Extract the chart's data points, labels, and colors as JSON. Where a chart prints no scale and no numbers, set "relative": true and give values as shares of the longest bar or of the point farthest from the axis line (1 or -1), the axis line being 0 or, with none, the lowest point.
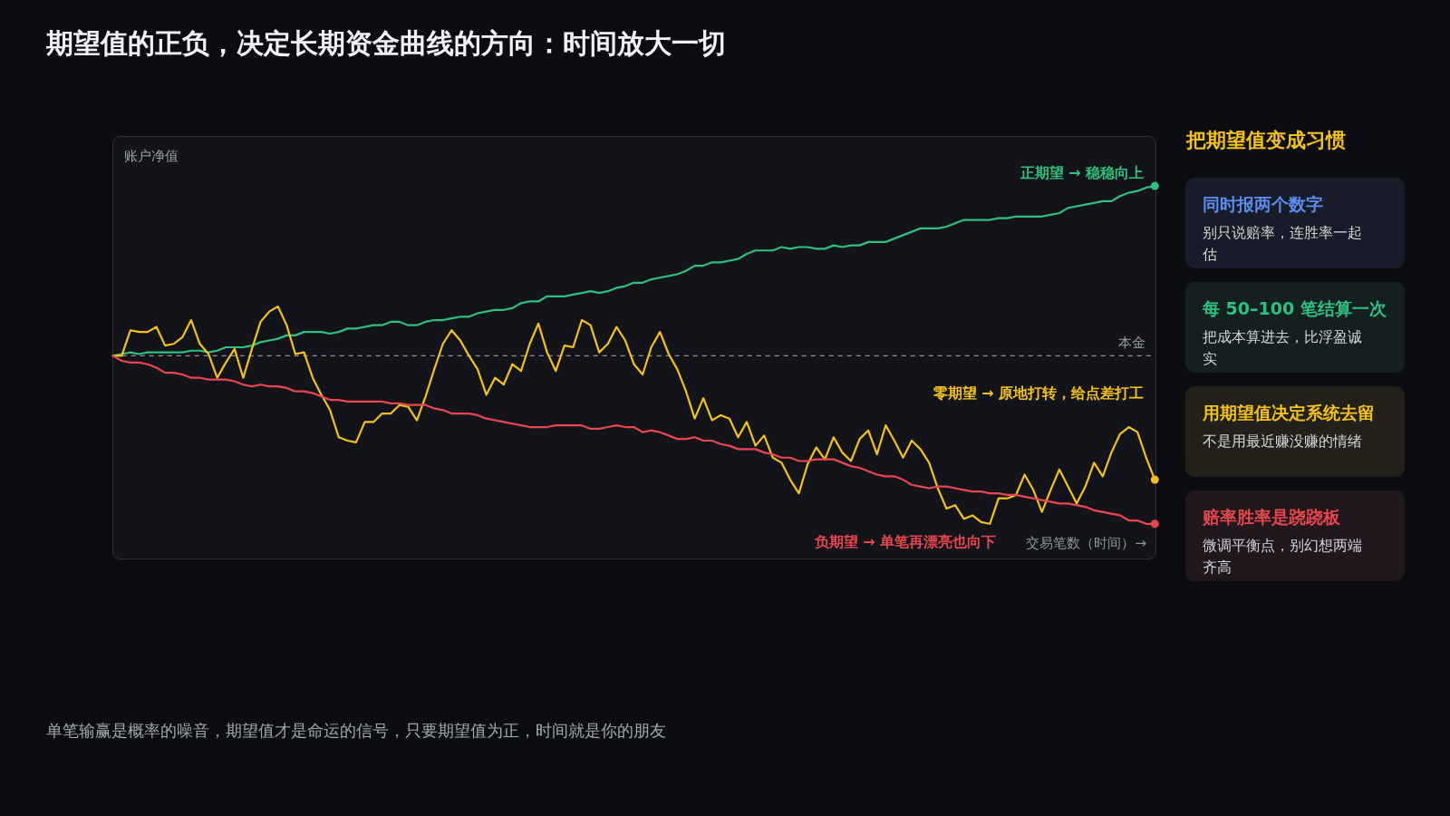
{
  "chart_data": [
    {
      "type": "line",
      "title": "期望值的正负，决定长期资金曲线的方向：时间放大一切",
      "xlabel": "交易笔数（时间）→",
      "ylabel": "账户净值",
      "annotations": [
        "单笔输赢是概率的噪音，期望值才是命运的信号，只要期望值为正，时间就是你的朋友"
      ],
      "relative": true,
      "categories": [
        null,
        null,
        null,
        null,
        null,
        null,
        null,
        null,
        null,
        null,
        null,
        null,
        null,
        null,
        null,
        null,
        null,
        null,
        null,
        null,
        null,
        null,
        null,
        null,
        null,
        null,
        null,
        null,
        null,
        null,
        null,
        null,
        null,
        null,
        null,
        null,
        null,
        null,
        null,
        null,
        null,
        null,
        null,
        null,
        null,
        null,
        null,
        null,
        null,
        null,
        null,
        null,
        null,
        null,
        null,
        null,
        null,
        null,
        null,
        null,
        null,
        null,
        null,
        null,
        null,
        null,
        null,
        null,
        null,
        null,
        null,
        null,
        null,
        null,
        null,
        null,
        null,
        null,
        null,
        null,
        null,
        null,
        null,
        null,
        null,
        null,
        null,
        null,
        null,
        null,
        null,
        null,
        null,
        null,
        null,
        null,
        null,
        null,
        null,
        null,
        null,
        null,
        null,
        null,
        null,
        null,
        null,
        null,
        null,
        null,
        null,
        null,
        null,
        null,
        null,
        null,
        null,
        null,
        null,
        null,
        null
      ],
      "series": [
        {
          "name": "正期望 → 稳稳向上",
          "color": "#2fc07f",
          "values": [
            0,
            0.01,
            0.02,
            0.01,
            0.02,
            0.02,
            0.02,
            0.02,
            0.02,
            0.03,
            0.03,
            0.02,
            0.03,
            0.05,
            0.05,
            0.05,
            0.06,
            0.08,
            0.09,
            0.1,
            0.12,
            0.12,
            0.14,
            0.14,
            0.14,
            0.13,
            0.14,
            0.16,
            0.16,
            0.17,
            0.18,
            0.18,
            0.2,
            0.2,
            0.18,
            0.18,
            0.2,
            0.21,
            0.21,
            0.22,
            0.23,
            0.23,
            0.25,
            0.26,
            0.27,
            0.27,
            0.28,
            0.31,
            0.32,
            0.32,
            0.35,
            0.35,
            0.35,
            0.36,
            0.37,
            0.38,
            0.37,
            0.38,
            0.4,
            0.41,
            0.43,
            0.43,
            0.45,
            0.46,
            0.47,
            0.48,
            0.5,
            0.53,
            0.53,
            0.55,
            0.55,
            0.56,
            0.57,
            0.6,
            0.62,
            0.62,
            0.62,
            0.64,
            0.63,
            0.64,
            0.64,
            0.63,
            0.63,
            0.65,
            0.64,
            0.65,
            0.65,
            0.67,
            0.67,
            0.67,
            0.69,
            0.71,
            0.73,
            0.75,
            0.75,
            0.75,
            0.76,
            0.78,
            0.8,
            0.8,
            0.8,
            0.8,
            0.81,
            0.81,
            0.82,
            0.82,
            0.82,
            0.82,
            0.83,
            0.84,
            0.87,
            0.88,
            0.89,
            0.9,
            0.91,
            0.91,
            0.94,
            0.96,
            0.97,
            0.99,
            1.0
          ]
        },
        {
          "name": "零期望 → 原地打转，给点差打工",
          "color": "#f4c21a",
          "values": [
            0,
            0.0,
            0.15,
            0.14,
            0.14,
            0.17,
            0.06,
            0.07,
            0.11,
            0.21,
            0.07,
            0.01,
            -0.13,
            -0.04,
            0.04,
            -0.13,
            0.04,
            0.2,
            0.26,
            0.29,
            0.18,
            0.01,
            0.02,
            -0.13,
            -0.23,
            -0.32,
            -0.48,
            -0.5,
            -0.51,
            -0.39,
            -0.39,
            -0.34,
            -0.34,
            -0.29,
            -0.3,
            -0.38,
            -0.24,
            -0.08,
            0.07,
            0.15,
            0.09,
            0.0,
            -0.08,
            -0.23,
            -0.13,
            -0.17,
            -0.05,
            -0.09,
            0.07,
            0.19,
            0.02,
            -0.09,
            0.06,
            0.05,
            0.21,
            0.18,
            0.02,
            0.07,
            0.17,
            0.09,
            -0.05,
            -0.11,
            0.05,
            0.14,
            0.01,
            -0.08,
            -0.21,
            -0.37,
            -0.25,
            -0.38,
            -0.35,
            -0.37,
            -0.48,
            -0.39,
            -0.53,
            -0.47,
            -0.6,
            -0.63,
            -0.73,
            -0.81,
            -0.64,
            -0.54,
            -0.61,
            -0.48,
            -0.57,
            -0.62,
            -0.49,
            -0.44,
            -0.58,
            -0.41,
            -0.5,
            -0.6,
            -0.5,
            -0.55,
            -0.63,
            -0.78,
            -0.9,
            -0.88,
            -0.96,
            -0.94,
            -0.98,
            -0.99,
            -0.84,
            -0.84,
            -0.82,
            -0.7,
            -0.79,
            -0.92,
            -0.79,
            -0.67,
            -0.77,
            -0.87,
            -0.77,
            -0.63,
            -0.71,
            -0.57,
            -0.46,
            -0.42,
            -0.45,
            -0.6,
            -0.73
          ]
        },
        {
          "name": "负期望 → 单笔再漂亮也向下",
          "color": "#e8474f",
          "values": [
            0,
            -0.03,
            -0.04,
            -0.04,
            -0.05,
            -0.07,
            -0.1,
            -0.1,
            -0.11,
            -0.13,
            -0.13,
            -0.14,
            -0.14,
            -0.14,
            -0.15,
            -0.17,
            -0.18,
            -0.17,
            -0.18,
            -0.18,
            -0.19,
            -0.21,
            -0.21,
            -0.22,
            -0.24,
            -0.26,
            -0.26,
            -0.27,
            -0.27,
            -0.27,
            -0.27,
            -0.27,
            -0.28,
            -0.28,
            -0.29,
            -0.29,
            -0.29,
            -0.31,
            -0.32,
            -0.34,
            -0.34,
            -0.34,
            -0.35,
            -0.37,
            -0.38,
            -0.39,
            -0.4,
            -0.41,
            -0.42,
            -0.42,
            -0.42,
            -0.41,
            -0.41,
            -0.41,
            -0.41,
            -0.43,
            -0.43,
            -0.42,
            -0.41,
            -0.42,
            -0.42,
            -0.45,
            -0.44,
            -0.45,
            -0.47,
            -0.49,
            -0.49,
            -0.48,
            -0.5,
            -0.5,
            -0.52,
            -0.53,
            -0.55,
            -0.55,
            -0.55,
            -0.57,
            -0.58,
            -0.6,
            -0.6,
            -0.62,
            -0.62,
            -0.61,
            -0.61,
            -0.61,
            -0.63,
            -0.65,
            -0.66,
            -0.68,
            -0.7,
            -0.71,
            -0.71,
            -0.73,
            -0.76,
            -0.77,
            -0.78,
            -0.77,
            -0.77,
            -0.78,
            -0.79,
            -0.8,
            -0.8,
            -0.81,
            -0.81,
            -0.82,
            -0.82,
            -0.83,
            -0.84,
            -0.85,
            -0.86,
            -0.87,
            -0.87,
            -0.88,
            -0.89,
            -0.91,
            -0.92,
            -0.93,
            -0.94,
            -0.97,
            -0.97,
            -0.99,
            -0.99
          ]
        }
      ],
      "ref_lines": [
        {
          "axis": "y",
          "value": 0,
          "label": "本金",
          "color": "#8e939b",
          "line_style": "dashed"
        }
      ]
    },
    {
      "type": "other",
      "title": "把期望值变成习惯",
      "categories": [
        "同时报两个数字",
        "每 50–100 笔结算一次",
        "用期望值决定系统去留",
        "赔率胜率是跷跷板"
      ],
      "annotations": [
        "别只说赔率，连胜率一起估",
        "把成本算进去，比浮盈诚实",
        "不是用最近赚没赚的情绪",
        "微调平衡点，别幻想两端齐高"
      ]
    }
  ]
}
